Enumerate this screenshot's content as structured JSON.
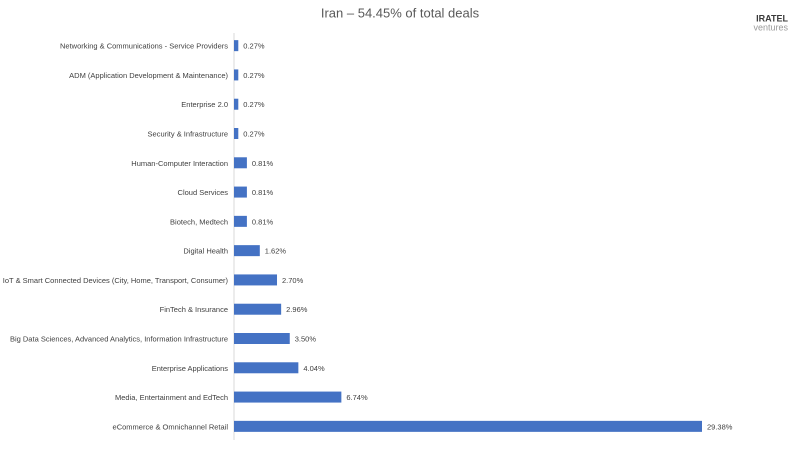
{
  "chart_data": {
    "type": "bar",
    "orientation": "horizontal",
    "title": "Iran – 54.45% of total deals",
    "logo": {
      "brand": "IRATEL",
      "tagline": "ventures"
    },
    "categories": [
      "Networking & Communications - Service Providers",
      "ADM (Application Development & Maintenance)",
      "Enterprise 2.0",
      "Security & Infrastructure",
      "Human-Computer Interaction",
      "Cloud Services",
      "Biotech, Medtech",
      "Digital Health",
      "IoT & Smart Connected Devices (City, Home, Transport, Consumer)",
      "FinTech & Insurance",
      "Big Data Sciences, Advanced Analytics, Information Infrastructure",
      "Enterprise Applications",
      "Media, Entertainment and EdTech",
      "eCommerce & Omnichannel Retail"
    ],
    "values": [
      0.27,
      0.27,
      0.27,
      0.27,
      0.81,
      0.81,
      0.81,
      1.62,
      2.7,
      2.96,
      3.5,
      4.04,
      6.74,
      29.38
    ],
    "value_labels": [
      "0.27%",
      "0.27%",
      "0.27%",
      "0.27%",
      "0.81%",
      "0.81%",
      "0.81%",
      "1.62%",
      "2.70%",
      "2.96%",
      "3.50%",
      "4.04%",
      "6.74%",
      "29.38%"
    ],
    "color": "#4472c4"
  }
}
